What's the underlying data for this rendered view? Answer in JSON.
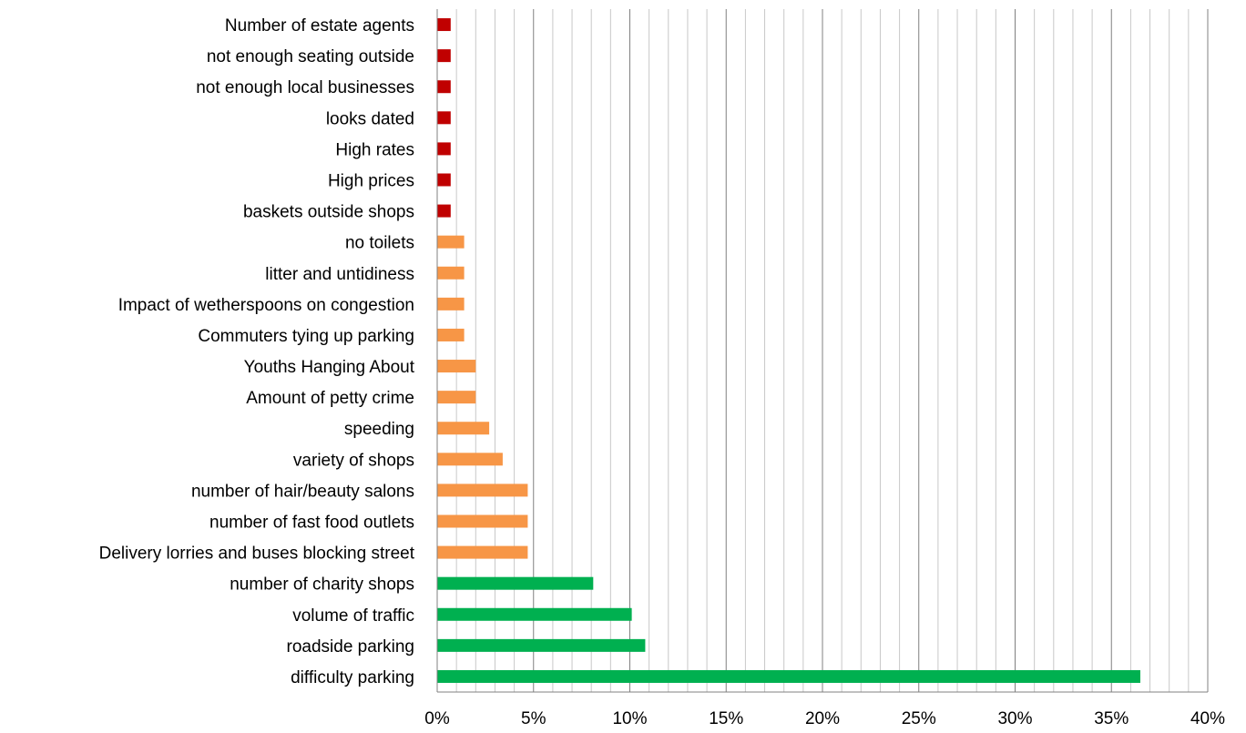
{
  "chart_data": {
    "type": "bar",
    "orientation": "horizontal",
    "title": "",
    "xlabel": "",
    "ylabel": "",
    "xlim": [
      0,
      40
    ],
    "x_ticks": [
      0,
      5,
      10,
      15,
      20,
      25,
      30,
      35,
      40
    ],
    "x_tick_labels": [
      "0%",
      "5%",
      "10%",
      "15%",
      "20%",
      "25%",
      "30%",
      "35%",
      "40%"
    ],
    "minor_grid_step": 1,
    "grid": true,
    "legend": "none",
    "colors": {
      "high": "#00b050",
      "medium": "#f79646",
      "low": "#c00000",
      "major_grid": "#808080",
      "minor_grid": "#c8c8c8"
    },
    "categories": [
      "Number of estate agents",
      "not enough seating outside",
      "not enough local businesses",
      "looks dated",
      "High rates",
      "High prices",
      "baskets outside shops",
      "no toilets",
      "litter and untidiness",
      "Impact of wetherspoons on congestion",
      "Commuters tying up parking",
      "Youths Hanging About",
      "Amount of petty crime",
      "speeding",
      "variety of shops",
      "number of hair/beauty salons",
      "number of fast food outlets",
      "Delivery lorries and buses blocking street",
      "number of charity shops",
      "volume of traffic",
      "roadside parking",
      "difficulty parking"
    ],
    "values": [
      0.7,
      0.7,
      0.7,
      0.7,
      0.7,
      0.7,
      0.7,
      1.4,
      1.4,
      1.4,
      1.4,
      2.0,
      2.0,
      2.7,
      3.4,
      4.7,
      4.7,
      4.7,
      8.1,
      10.1,
      10.8,
      36.5
    ],
    "groups": [
      "low",
      "low",
      "low",
      "low",
      "low",
      "low",
      "low",
      "medium",
      "medium",
      "medium",
      "medium",
      "medium",
      "medium",
      "medium",
      "medium",
      "medium",
      "medium",
      "medium",
      "high",
      "high",
      "high",
      "high"
    ]
  }
}
